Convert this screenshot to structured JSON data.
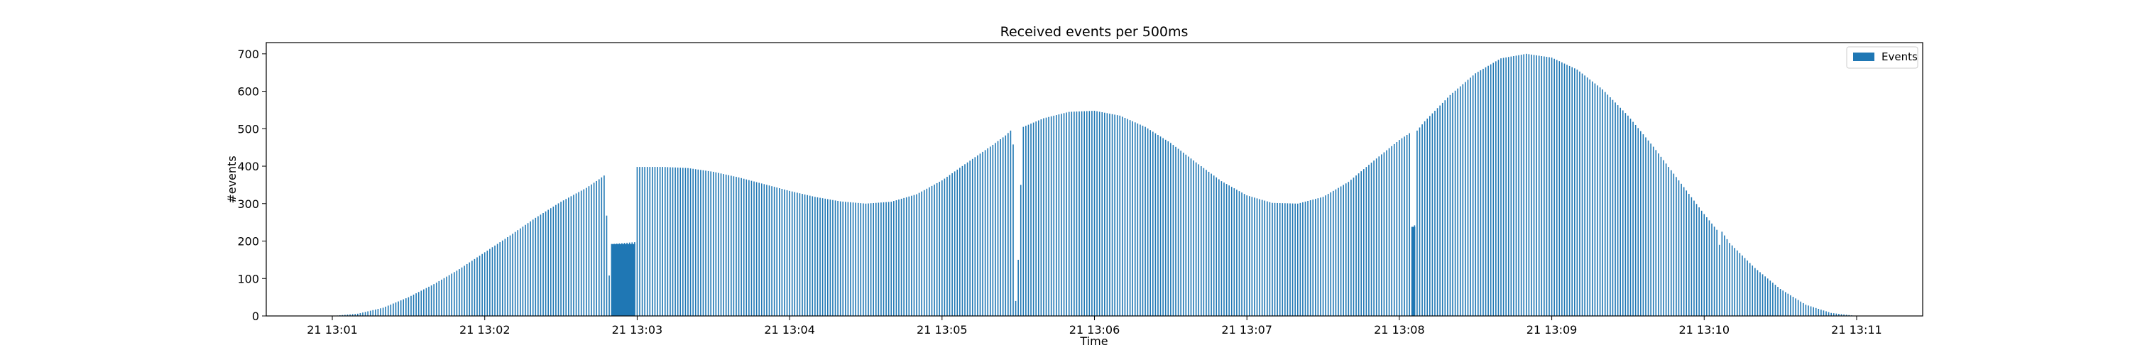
{
  "chart_data": {
    "type": "bar",
    "title": "Received events per 500ms",
    "xlabel": "Time",
    "ylabel": "#events",
    "ylim": [
      0,
      730
    ],
    "y_ticks": [
      0,
      100,
      200,
      300,
      400,
      500,
      600,
      700
    ],
    "x_range_minutes": [
      "21 13:00:34",
      "21 13:11:26"
    ],
    "x_ticks": [
      {
        "time": "21 13:01:00",
        "label": "21 13:01"
      },
      {
        "time": "21 13:02:00",
        "label": "21 13:02"
      },
      {
        "time": "21 13:03:00",
        "label": "21 13:03"
      },
      {
        "time": "21 13:04:00",
        "label": "21 13:04"
      },
      {
        "time": "21 13:05:00",
        "label": "21 13:05"
      },
      {
        "time": "21 13:06:00",
        "label": "21 13:06"
      },
      {
        "time": "21 13:07:00",
        "label": "21 13:07"
      },
      {
        "time": "21 13:08:00",
        "label": "21 13:08"
      },
      {
        "time": "21 13:09:00",
        "label": "21 13:09"
      },
      {
        "time": "21 13:10:00",
        "label": "21 13:10"
      },
      {
        "time": "21 13:11:00",
        "label": "21 13:11"
      }
    ],
    "legend": {
      "placement": "top-right",
      "entries": [
        "Events"
      ]
    },
    "grid": false,
    "bar_color": "#1f77b4",
    "series": [
      {
        "name": "Events",
        "points": [
          [
            "21 13:01:00",
            0
          ],
          [
            "21 13:01:10",
            6
          ],
          [
            "21 13:01:20",
            22
          ],
          [
            "21 13:01:30",
            50
          ],
          [
            "21 13:01:40",
            85
          ],
          [
            "21 13:01:50",
            125
          ],
          [
            "21 13:02:00",
            170
          ],
          [
            "21 13:02:10",
            215
          ],
          [
            "21 13:02:20",
            262
          ],
          [
            "21 13:02:30",
            305
          ],
          [
            "21 13:02:40",
            342
          ],
          [
            "21 13:02:45",
            365
          ],
          [
            "21 13:02:47",
            375
          ],
          [
            "21 13:02:48",
            268
          ],
          [
            "21 13:02:49",
            108
          ],
          [
            "21 13:02:50",
            192
          ],
          [
            "21 13:02:55",
            195
          ],
          [
            "21 13:02:59",
            197
          ],
          [
            "21 13:03:00",
            398
          ],
          [
            "21 13:03:10",
            398
          ],
          [
            "21 13:03:20",
            395
          ],
          [
            "21 13:03:30",
            385
          ],
          [
            "21 13:03:40",
            370
          ],
          [
            "21 13:03:50",
            352
          ],
          [
            "21 13:04:00",
            334
          ],
          [
            "21 13:04:10",
            318
          ],
          [
            "21 13:04:20",
            306
          ],
          [
            "21 13:04:30",
            300
          ],
          [
            "21 13:04:40",
            305
          ],
          [
            "21 13:04:50",
            325
          ],
          [
            "21 13:05:00",
            362
          ],
          [
            "21 13:05:10",
            410
          ],
          [
            "21 13:05:20",
            457
          ],
          [
            "21 13:05:25",
            482
          ],
          [
            "21 13:05:27",
            495
          ],
          [
            "21 13:05:28",
            458
          ],
          [
            "21 13:05:29",
            40
          ],
          [
            "21 13:05:30",
            150
          ],
          [
            "21 13:05:31",
            350
          ],
          [
            "21 13:05:32",
            505
          ],
          [
            "21 13:05:40",
            528
          ],
          [
            "21 13:05:50",
            545
          ],
          [
            "21 13:06:00",
            548
          ],
          [
            "21 13:06:10",
            535
          ],
          [
            "21 13:06:20",
            505
          ],
          [
            "21 13:06:30",
            462
          ],
          [
            "21 13:06:40",
            410
          ],
          [
            "21 13:06:50",
            360
          ],
          [
            "21 13:07:00",
            322
          ],
          [
            "21 13:07:10",
            302
          ],
          [
            "21 13:07:20",
            300
          ],
          [
            "21 13:07:30",
            318
          ],
          [
            "21 13:07:40",
            358
          ],
          [
            "21 13:07:50",
            415
          ],
          [
            "21 13:08:00",
            470
          ],
          [
            "21 13:08:04",
            488
          ],
          [
            "21 13:08:05",
            238
          ],
          [
            "21 13:08:06",
            242
          ],
          [
            "21 13:08:07",
            495
          ],
          [
            "21 13:08:10",
            520
          ],
          [
            "21 13:08:20",
            590
          ],
          [
            "21 13:08:30",
            648
          ],
          [
            "21 13:08:40",
            688
          ],
          [
            "21 13:08:50",
            700
          ],
          [
            "21 13:09:00",
            690
          ],
          [
            "21 13:09:10",
            658
          ],
          [
            "21 13:09:20",
            605
          ],
          [
            "21 13:09:30",
            535
          ],
          [
            "21 13:09:40",
            452
          ],
          [
            "21 13:09:50",
            362
          ],
          [
            "21 13:10:00",
            272
          ],
          [
            "21 13:10:05",
            230
          ],
          [
            "21 13:10:06",
            190
          ],
          [
            "21 13:10:07",
            225
          ],
          [
            "21 13:10:10",
            195
          ],
          [
            "21 13:10:20",
            128
          ],
          [
            "21 13:10:30",
            72
          ],
          [
            "21 13:10:40",
            30
          ],
          [
            "21 13:10:50",
            8
          ],
          [
            "21 13:11:00",
            0
          ]
        ]
      }
    ]
  }
}
